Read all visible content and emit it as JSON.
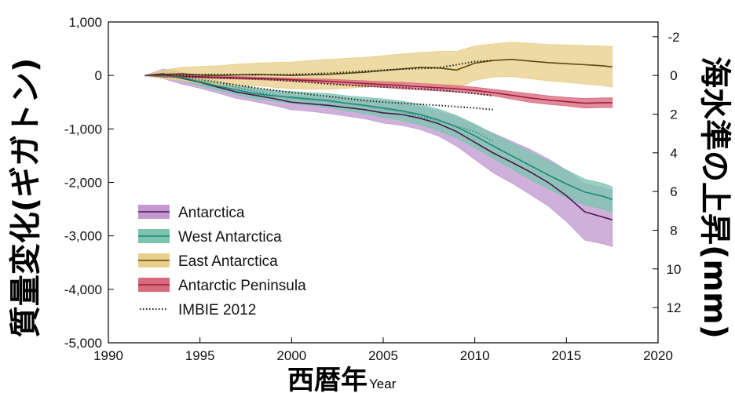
{
  "chart_data": {
    "type": "area",
    "xlim": [
      1990,
      2020
    ],
    "ylim": [
      -5000,
      1000
    ],
    "x_ticks": [
      "1990",
      "1995",
      "2000",
      "2005",
      "2010",
      "2015",
      "2020"
    ],
    "y_ticks": [
      "1,000",
      "0",
      "-1,000",
      "-2,000",
      "-3,000",
      "-4,000",
      "-5,000"
    ],
    "y_tick_values": [
      1000,
      0,
      -1000,
      -2000,
      -3000,
      -4000,
      -5000
    ],
    "y2_ticks": [
      "-2",
      "0",
      "2",
      "4",
      "6",
      "8",
      "10",
      "12"
    ],
    "y2_tick_values": [
      -2,
      0,
      2,
      4,
      6,
      8,
      10,
      12
    ],
    "y2_unit_gt_per_mm": 361.8,
    "ylabel": "質量変化(ギガトン)",
    "y2label": "海水準の上昇(mm)",
    "xlabel": "西暦年",
    "xlabel_en": "Year",
    "legend_position": "bottom-left",
    "grid": false,
    "x": [
      1992,
      1993,
      1994,
      1995,
      1996,
      1997,
      1998,
      1999,
      2000,
      2001,
      2002,
      2003,
      2004,
      2005,
      2006,
      2007,
      2008,
      2009,
      2010,
      2011,
      2012,
      2013,
      2014,
      2015,
      2016,
      2017,
      2017.5
    ],
    "series": [
      {
        "name": "Antarctica",
        "color": "#4a1a4f",
        "fill": "#c29ad1",
        "values": [
          0,
          30,
          -50,
          -130,
          -220,
          -310,
          -370,
          -430,
          -500,
          -530,
          -560,
          -600,
          -640,
          -700,
          -730,
          -800,
          -900,
          -1050,
          -1250,
          -1450,
          -1620,
          -1800,
          -2000,
          -2250,
          -2550,
          -2650,
          -2700
        ],
        "upper": [
          0,
          120,
          60,
          -30,
          -110,
          -190,
          -250,
          -300,
          -360,
          -390,
          -410,
          -440,
          -470,
          -510,
          -530,
          -590,
          -670,
          -780,
          -930,
          -1080,
          -1230,
          -1380,
          -1560,
          -1770,
          -2020,
          -2100,
          -2150
        ],
        "lower": [
          0,
          -60,
          -160,
          -240,
          -330,
          -430,
          -490,
          -560,
          -640,
          -670,
          -710,
          -760,
          -810,
          -890,
          -930,
          -1010,
          -1130,
          -1320,
          -1570,
          -1820,
          -2010,
          -2220,
          -2440,
          -2730,
          -3080,
          -3150,
          -3200
        ]
      },
      {
        "name": "West Antarctica",
        "color": "#1a8a75",
        "fill": "#7cc4b0",
        "values": [
          0,
          10,
          -40,
          -120,
          -200,
          -270,
          -340,
          -380,
          -410,
          -440,
          -470,
          -520,
          -560,
          -610,
          -660,
          -730,
          -830,
          -960,
          -1130,
          -1320,
          -1500,
          -1680,
          -1860,
          -2030,
          -2180,
          -2260,
          -2320
        ],
        "upper": [
          0,
          60,
          20,
          -50,
          -120,
          -180,
          -240,
          -280,
          -300,
          -320,
          -340,
          -380,
          -410,
          -440,
          -480,
          -540,
          -630,
          -750,
          -910,
          -1090,
          -1260,
          -1420,
          -1600,
          -1770,
          -1940,
          -2020,
          -2080
        ],
        "lower": [
          0,
          -40,
          -100,
          -190,
          -280,
          -360,
          -440,
          -480,
          -520,
          -560,
          -600,
          -660,
          -710,
          -780,
          -840,
          -920,
          -1030,
          -1170,
          -1350,
          -1550,
          -1740,
          -1940,
          -2120,
          -2290,
          -2420,
          -2500,
          -2560
        ]
      },
      {
        "name": "East Antarctica",
        "color": "#5a4a10",
        "fill": "#e8cf8a",
        "values": [
          0,
          20,
          30,
          10,
          0,
          10,
          20,
          10,
          0,
          10,
          20,
          40,
          60,
          90,
          120,
          150,
          140,
          100,
          230,
          280,
          300,
          270,
          240,
          220,
          200,
          180,
          160
        ],
        "upper": [
          0,
          100,
          150,
          170,
          180,
          210,
          230,
          240,
          250,
          280,
          300,
          320,
          340,
          370,
          400,
          430,
          450,
          450,
          550,
          590,
          620,
          600,
          580,
          570,
          560,
          550,
          540
        ],
        "lower": [
          0,
          -60,
          -90,
          -150,
          -180,
          -190,
          -190,
          -220,
          -250,
          -260,
          -260,
          -240,
          -220,
          -190,
          -160,
          -130,
          -170,
          -250,
          -90,
          -30,
          -20,
          -60,
          -100,
          -130,
          -160,
          -190,
          -220
        ]
      },
      {
        "name": "Antarctic Peninsula",
        "color": "#a01c3c",
        "fill": "#d86a7e",
        "values": [
          0,
          -5,
          -15,
          -25,
          -35,
          -45,
          -55,
          -65,
          -80,
          -95,
          -110,
          -130,
          -150,
          -170,
          -190,
          -210,
          -230,
          -250,
          -280,
          -320,
          -370,
          -420,
          -460,
          -490,
          -520,
          -510,
          -510
        ],
        "upper": [
          0,
          20,
          10,
          0,
          -10,
          -20,
          -30,
          -40,
          -50,
          -60,
          -70,
          -85,
          -100,
          -115,
          -130,
          -150,
          -170,
          -190,
          -220,
          -260,
          -300,
          -340,
          -380,
          -410,
          -430,
          -420,
          -420
        ],
        "lower": [
          0,
          -30,
          -40,
          -50,
          -60,
          -70,
          -80,
          -90,
          -110,
          -130,
          -150,
          -175,
          -200,
          -225,
          -250,
          -270,
          -290,
          -310,
          -340,
          -380,
          -440,
          -500,
          -540,
          -570,
          -610,
          -600,
          -600
        ]
      },
      {
        "name": "IMBIE 2012",
        "color": "#222222",
        "style": "dotted",
        "tracks": [
          {
            "x": [
              1992,
              1994,
              1996,
              1998,
              2000,
              2002,
              2004,
              2006,
              2008,
              2010,
              2011
            ],
            "values": [
              0,
              -40,
              -130,
              -230,
              -320,
              -390,
              -470,
              -520,
              -560,
              -610,
              -640
            ],
            "color": "#222222"
          },
          {
            "x": [
              1992,
              1994,
              1996,
              1998,
              2000,
              2002,
              2004,
              2006,
              2008,
              2010,
              2011
            ],
            "values": [
              0,
              10,
              20,
              10,
              20,
              40,
              80,
              120,
              140,
              260,
              280
            ],
            "color": "#222222"
          },
          {
            "x": [
              1992,
              1994,
              1996,
              1998,
              2000,
              2002,
              2004,
              2006,
              2008,
              2010,
              2011
            ],
            "values": [
              0,
              -20,
              -40,
              -60,
              -100,
              -160,
              -200,
              -230,
              -270,
              -340,
              -380
            ],
            "color": "#222222"
          },
          {
            "x": [
              1992,
              1994,
              1996,
              1998,
              2000,
              2002,
              2004,
              2006,
              2008,
              2010,
              2011
            ],
            "values": [
              0,
              -30,
              -150,
              -300,
              -430,
              -480,
              -570,
              -680,
              -850,
              -1050,
              -1230
            ],
            "color": "#3a9a85"
          }
        ]
      }
    ],
    "legend": [
      {
        "label": "Antarctica",
        "fill": "#c29ad1",
        "color": "#4a1a4f",
        "style": "solid"
      },
      {
        "label": "West Antarctica",
        "fill": "#7cc4b0",
        "color": "#1a8a75",
        "style": "solid"
      },
      {
        "label": "East Antarctica",
        "fill": "#e8cf8a",
        "color": "#5a4a10",
        "style": "solid"
      },
      {
        "label": "Antarctic Peninsula",
        "fill": "#d86a7e",
        "color": "#a01c3c",
        "style": "solid"
      },
      {
        "label": "IMBIE 2012",
        "fill": "none",
        "color": "#222222",
        "style": "dotted"
      }
    ]
  }
}
